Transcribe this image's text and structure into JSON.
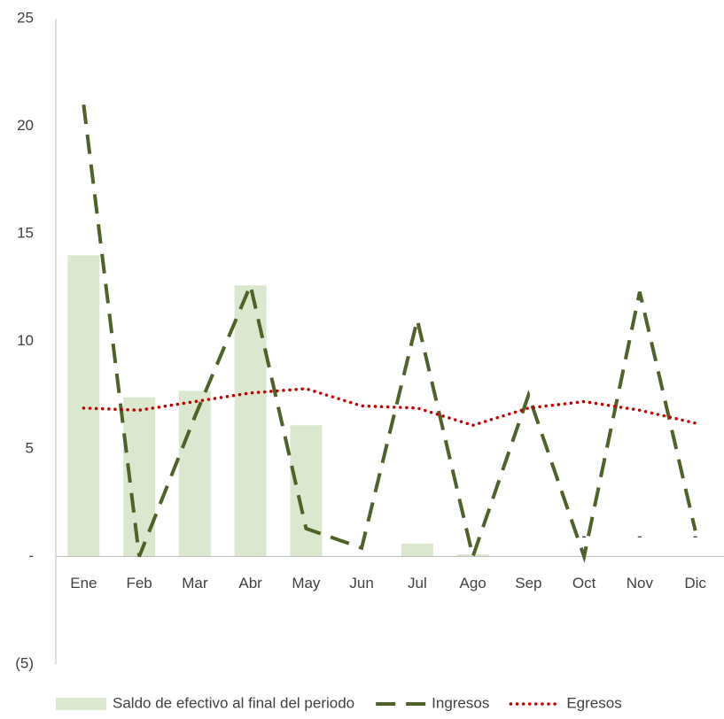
{
  "chart_data": {
    "type": "combo",
    "categories": [
      "Ene",
      "Feb",
      "Mar",
      "Abr",
      "May",
      "Jun",
      "Jul",
      "Ago",
      "Sep",
      "Oct",
      "Nov",
      "Dic"
    ],
    "series": [
      {
        "name": "Saldo de efectivo al final del periodo",
        "type": "bar",
        "color": "#dbe8cf",
        "values": [
          14,
          7.4,
          7.7,
          12.6,
          6.1,
          0,
          0.6,
          0.1,
          0,
          0,
          0,
          0
        ],
        "value_labels": [
          null,
          null,
          null,
          null,
          null,
          null,
          null,
          null,
          null,
          "-",
          "-",
          "-"
        ]
      },
      {
        "name": "Ingresos",
        "type": "line",
        "style": "dashed",
        "color": "#4f6228",
        "values": [
          21,
          0,
          6.5,
          12.6,
          1.3,
          0.4,
          11,
          0,
          7.5,
          0,
          12.3,
          1.2
        ]
      },
      {
        "name": "Egresos",
        "type": "line",
        "style": "dotted",
        "color": "#c00000",
        "values": [
          6.9,
          6.8,
          7.2,
          7.6,
          7.8,
          7.0,
          6.9,
          6.1,
          6.9,
          7.2,
          6.8,
          6.2
        ]
      }
    ],
    "ylim": [
      -5,
      25
    ],
    "yticks": [
      {
        "value": -5,
        "label": "(5)"
      },
      {
        "value": 0,
        "label": "-"
      },
      5,
      10,
      15,
      20,
      25
    ],
    "grid": false,
    "legend": "bottom"
  }
}
